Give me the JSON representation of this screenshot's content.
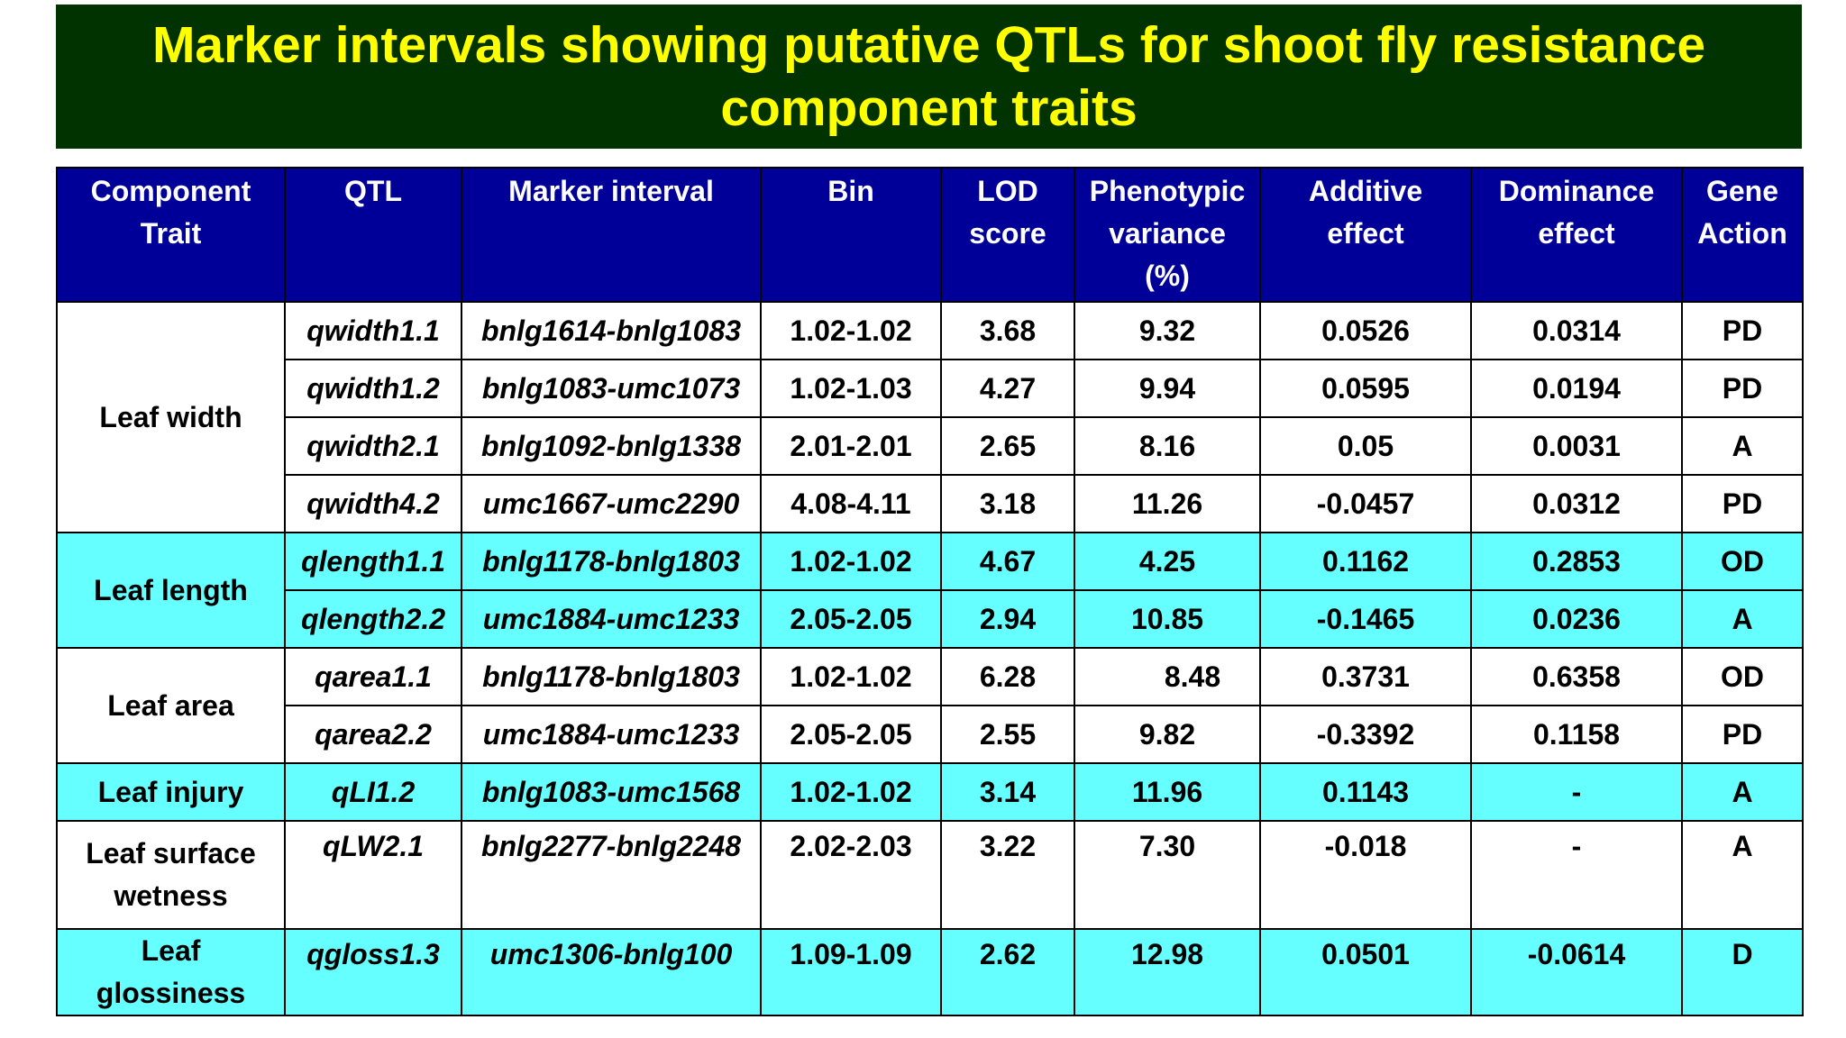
{
  "title": "Marker intervals showing putative QTLs for shoot fly resistance component traits",
  "headers": {
    "trait": [
      "Component",
      "Trait"
    ],
    "qtl": "QTL",
    "marker": "Marker interval",
    "bin": "Bin",
    "lod": [
      "LOD",
      "score"
    ],
    "pv": [
      "Phenotypic",
      "variance",
      "(%)"
    ],
    "add": [
      "Additive",
      "effect"
    ],
    "dom": [
      "Dominance",
      "effect"
    ],
    "ga": [
      "Gene",
      "Action"
    ]
  },
  "groups": {
    "leaf_width": "Leaf width",
    "leaf_length": "Leaf length",
    "leaf_area": "Leaf area",
    "leaf_injury": "Leaf injury",
    "leaf_surface_wetness": [
      "Leaf surface",
      "wetness"
    ],
    "leaf_glossiness": [
      "Leaf",
      "glossiness"
    ]
  },
  "rows": [
    {
      "qtl": "qwidth1.1",
      "marker": "bnlg1614-bnlg1083",
      "bin": "1.02-1.02",
      "lod": "3.68",
      "pv": "9.32",
      "add": "0.0526",
      "dom": "0.0314",
      "ga": "PD"
    },
    {
      "qtl": "qwidth1.2",
      "marker": "bnlg1083-umc1073",
      "bin": "1.02-1.03",
      "lod": "4.27",
      "pv": "9.94",
      "add": "0.0595",
      "dom": "0.0194",
      "ga": "PD"
    },
    {
      "qtl": "qwidth2.1",
      "marker": "bnlg1092-bnlg1338",
      "bin": "2.01-2.01",
      "lod": "2.65",
      "pv": "8.16",
      "add": "0.05",
      "dom": "0.0031",
      "ga": "A"
    },
    {
      "qtl": "qwidth4.2",
      "marker": "umc1667-umc2290",
      "bin": "4.08-4.11",
      "lod": "3.18",
      "pv": "11.26",
      "add": "-0.0457",
      "dom": "0.0312",
      "ga": "PD"
    },
    {
      "qtl": "qlength1.1",
      "marker": "bnlg1178-bnlg1803",
      "bin": "1.02-1.02",
      "lod": "4.67",
      "pv": "4.25",
      "add": "0.1162",
      "dom": "0.2853",
      "ga": "OD"
    },
    {
      "qtl": "qlength2.2",
      "marker": "umc1884-umc1233",
      "bin": "2.05-2.05",
      "lod": "2.94",
      "pv": "10.85",
      "add": "-0.1465",
      "dom": "0.0236",
      "ga": "A"
    },
    {
      "qtl": "qarea1.1",
      "marker": "bnlg1178-bnlg1803",
      "bin": "1.02-1.02",
      "lod": "6.28",
      "pv": "8.48",
      "add": "0.3731",
      "dom": "0.6358",
      "ga": "OD"
    },
    {
      "qtl": "qarea2.2",
      "marker": "umc1884-umc1233",
      "bin": "2.05-2.05",
      "lod": "2.55",
      "pv": "9.82",
      "add": "-0.3392",
      "dom": "0.1158",
      "ga": "PD"
    },
    {
      "qtl": "qLI1.2",
      "marker": "bnlg1083-umc1568",
      "bin": "1.02-1.02",
      "lod": "3.14",
      "pv": "11.96",
      "add": "0.1143",
      "dom": "-",
      "ga": "A"
    },
    {
      "qtl": "qLW2.1",
      "marker": "bnlg2277-bnlg2248",
      "bin": "2.02-2.03",
      "lod": "3.22",
      "pv": "7.30",
      "add": "-0.018",
      "dom": "-",
      "ga": "A"
    },
    {
      "qtl": "qgloss1.3",
      "marker": "umc1306-bnlg100",
      "bin": "1.09-1.09",
      "lod": "2.62",
      "pv": "12.98",
      "add": "0.0501",
      "dom": "-0.0614",
      "ga": "D"
    }
  ],
  "colors": {
    "title_background": "#003300",
    "title_text": "#ffff00",
    "header_background": "#000099",
    "header_text": "#ffffff",
    "highlight_row": "#66ffff"
  }
}
